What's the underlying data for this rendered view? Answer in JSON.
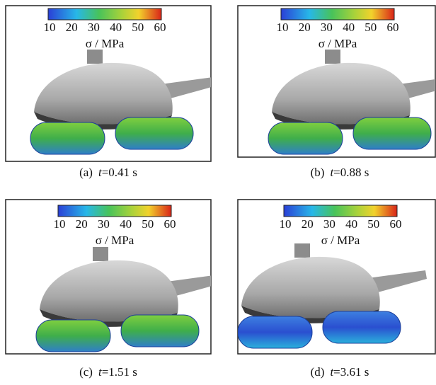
{
  "panels": [
    {
      "colorbar": {
        "ticks": [
          10,
          20,
          30,
          40,
          50,
          60
        ],
        "label": "σ / MPa"
      },
      "caption": {
        "tag": "(a)",
        "variable": "t",
        "value": "=0.41 s"
      }
    },
    {
      "colorbar": {
        "ticks": [
          10,
          20,
          30,
          40,
          50,
          60
        ],
        "label": "σ / MPa"
      },
      "caption": {
        "tag": "(b)",
        "variable": "t",
        "value": "=0.88 s"
      }
    },
    {
      "colorbar": {
        "ticks": [
          10,
          20,
          30,
          40,
          50,
          60
        ],
        "label": "σ / MPa"
      },
      "caption": {
        "tag": "(c)",
        "variable": "t",
        "value": "=1.51 s"
      }
    },
    {
      "colorbar": {
        "ticks": [
          10,
          20,
          30,
          40,
          50,
          60
        ],
        "label": "σ / MPa"
      },
      "caption": {
        "tag": "(d)",
        "variable": "t",
        "value": "=3.61 s"
      }
    }
  ]
}
